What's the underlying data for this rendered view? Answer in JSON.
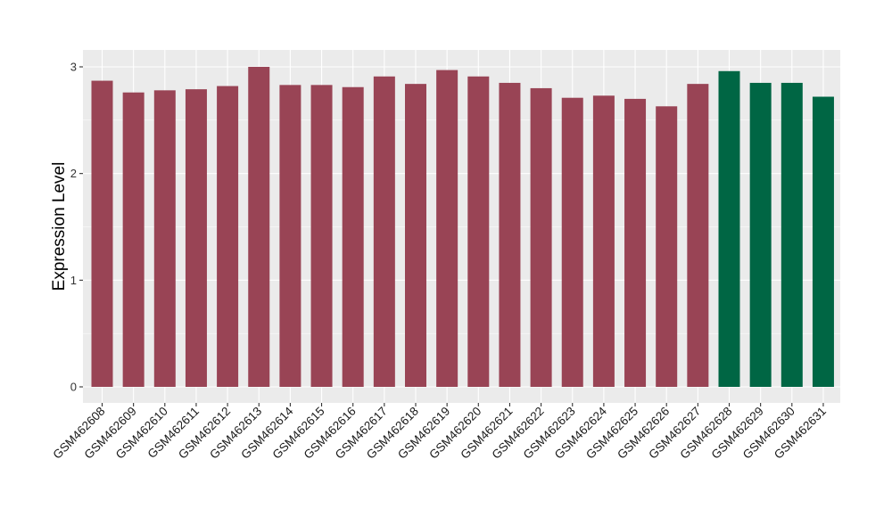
{
  "chart_data": {
    "type": "bar",
    "title": "",
    "xlabel": "",
    "ylabel": "Expression Level",
    "ylim": [
      0,
      3
    ],
    "y_ticks": [
      0,
      1,
      2,
      3
    ],
    "grid": true,
    "legend": "none",
    "colors": {
      "group_a": "#994455",
      "group_b": "#006644",
      "panel_bg": "#ebebeb",
      "grid": "#ffffff"
    },
    "categories": [
      "GSM462608",
      "GSM462609",
      "GSM462610",
      "GSM462611",
      "GSM462612",
      "GSM462613",
      "GSM462614",
      "GSM462615",
      "GSM462616",
      "GSM462617",
      "GSM462618",
      "GSM462619",
      "GSM462620",
      "GSM462621",
      "GSM462622",
      "GSM462623",
      "GSM462624",
      "GSM462625",
      "GSM462626",
      "GSM462627",
      "GSM462628",
      "GSM462629",
      "GSM462630",
      "GSM462631"
    ],
    "values": [
      2.87,
      2.76,
      2.78,
      2.79,
      2.82,
      3.0,
      2.83,
      2.83,
      2.81,
      2.91,
      2.84,
      2.97,
      2.91,
      2.85,
      2.8,
      2.71,
      2.73,
      2.7,
      2.63,
      2.84,
      2.96,
      2.85,
      2.85,
      2.72
    ],
    "bar_groups": [
      "a",
      "a",
      "a",
      "a",
      "a",
      "a",
      "a",
      "a",
      "a",
      "a",
      "a",
      "a",
      "a",
      "a",
      "a",
      "a",
      "a",
      "a",
      "a",
      "a",
      "b",
      "b",
      "b",
      "b"
    ]
  }
}
